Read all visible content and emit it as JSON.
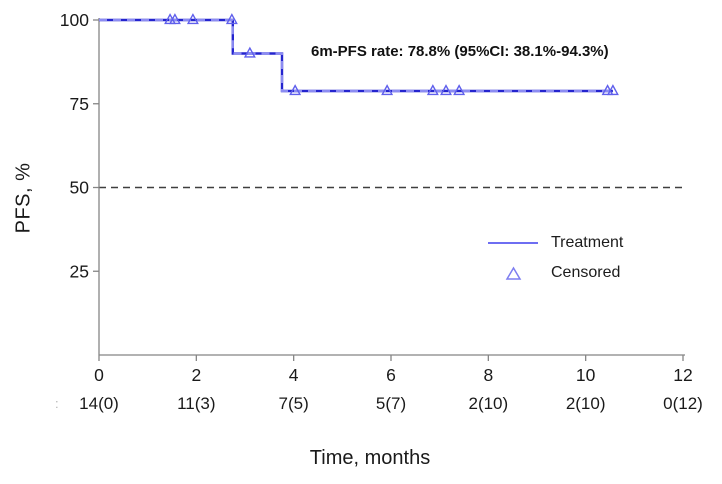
{
  "chart_data": {
    "type": "line",
    "subtype": "kaplan-meier-step-curve",
    "title": "",
    "annotation": "6m-PFS rate: 78.8% (95%CI: 38.1%-94.3%)",
    "xlabel": "Time, months",
    "ylabel": "PFS, %",
    "xlim": [
      0,
      12
    ],
    "ylim": [
      0,
      100
    ],
    "x_ticks": [
      "0",
      "2",
      "4",
      "6",
      "8",
      "10",
      "12"
    ],
    "y_ticks": [
      "25",
      "50",
      "75",
      "100"
    ],
    "grid": false,
    "legend_position": "inside-right",
    "series": [
      {
        "name": "Treatment",
        "color": "#2424ce",
        "dash_overlay_color": "#8c8cf2",
        "step_points": [
          [
            0,
            100
          ],
          [
            2.75,
            100
          ],
          [
            2.75,
            90
          ],
          [
            3.76,
            90
          ],
          [
            3.76,
            78.8
          ],
          [
            10.56,
            78.8
          ]
        ]
      }
    ],
    "censored": {
      "name": "Censored",
      "marker": "open-triangle",
      "color": "#5f5fec",
      "points": [
        [
          1.46,
          100
        ],
        [
          1.56,
          100
        ],
        [
          1.93,
          100
        ],
        [
          2.73,
          100
        ],
        [
          3.1,
          90
        ],
        [
          4.03,
          78.8
        ],
        [
          5.92,
          78.8
        ],
        [
          6.86,
          78.8
        ],
        [
          7.13,
          78.8
        ],
        [
          7.4,
          78.8
        ],
        [
          10.45,
          78.8
        ],
        [
          10.56,
          78.8
        ]
      ]
    },
    "reference_line": {
      "y": 50,
      "style": "dashed",
      "color": "#3f3f3f"
    },
    "at_risk": {
      "prefix": ":",
      "values": [
        "14(0)",
        "11(3)",
        "7(5)",
        "5(7)",
        "2(10)",
        "2(10)",
        "0(12)"
      ]
    },
    "legend_entries": [
      {
        "label": "Treatment",
        "marker": "line"
      },
      {
        "label": "Censored",
        "marker": "open-triangle"
      }
    ],
    "colors": {
      "axis": "#858585",
      "text": "#1a1a1a",
      "legend_line": "#6e6ef2",
      "legend_triangle": "#7d7df0",
      "at_risk_prefix": "#b5b5b5"
    }
  }
}
